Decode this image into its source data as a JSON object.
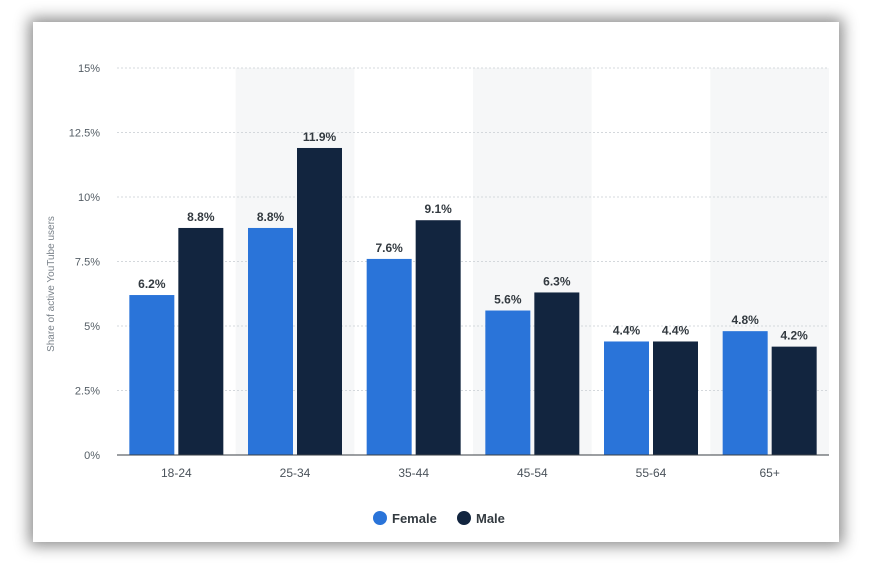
{
  "chart_data": {
    "type": "bar",
    "title": "",
    "xlabel": "",
    "ylabel": "Share of active YouTube users",
    "categories": [
      "18-24",
      "25-34",
      "35-44",
      "45-54",
      "55-64",
      "65+"
    ],
    "series": [
      {
        "name": "Female",
        "color": "#2a74d9",
        "values": [
          6.2,
          8.8,
          7.6,
          5.6,
          4.4,
          4.8
        ],
        "labels": [
          "6.2%",
          "8.8%",
          "7.6%",
          "5.6%",
          "4.4%",
          "4.8%"
        ]
      },
      {
        "name": "Male",
        "color": "#12253f",
        "values": [
          8.8,
          11.9,
          9.1,
          6.3,
          4.4,
          4.2
        ],
        "labels": [
          "8.8%",
          "11.9%",
          "9.1%",
          "6.3%",
          "4.4%",
          "4.2%"
        ]
      }
    ],
    "ylim": [
      0,
      15
    ],
    "yticks": [
      0,
      2.5,
      5,
      7.5,
      10,
      12.5,
      15
    ],
    "ytick_labels": [
      "0%",
      "2.5%",
      "5%",
      "7.5%",
      "10%",
      "12.5%",
      "15%"
    ],
    "grid": true,
    "alternating_band_color": "#f6f7f8",
    "legend_position": "bottom-center"
  }
}
